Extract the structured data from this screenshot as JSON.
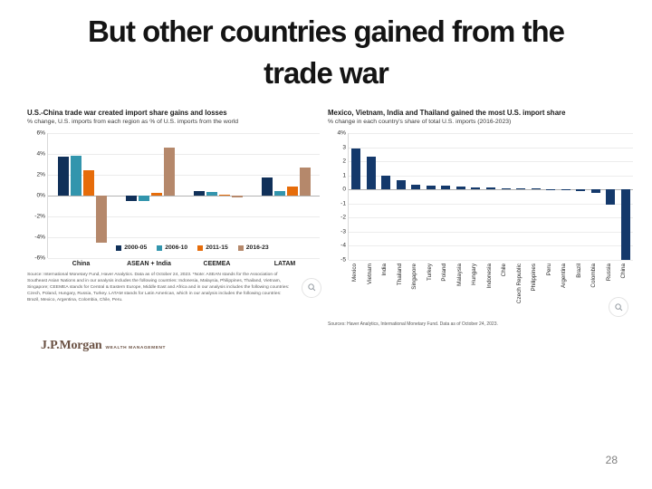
{
  "slide": {
    "title_lines": [
      "But other countries gained from the",
      "trade war"
    ],
    "page_number": "28"
  },
  "logo": {
    "name": "J.P.Morgan",
    "suffix": "WEALTH MANAGEMENT"
  },
  "colors": {
    "navy": "#103059",
    "teal": "#3295ad",
    "orange": "#e66c0a",
    "tan": "#b5886b",
    "right_bar_navy": "#14396b"
  },
  "chart_data": [
    {
      "type": "bar",
      "title": "U.S.-China trade war created import share gains and losses",
      "subtitle": "% change, U.S. imports from each region as % of U.S. imports from the world",
      "categories": [
        "China",
        "ASEAN + India",
        "CEEMEA",
        "LATAM"
      ],
      "series": [
        {
          "name": "2000-05",
          "color": "#103059",
          "values": [
            3.7,
            -0.5,
            0.4,
            1.7
          ]
        },
        {
          "name": "2006-10",
          "color": "#3295ad",
          "values": [
            3.8,
            -0.5,
            0.35,
            0.4
          ]
        },
        {
          "name": "2011-15",
          "color": "#e66c0a",
          "values": [
            2.4,
            0.3,
            0.1,
            0.9
          ]
        },
        {
          "name": "2016-23",
          "color": "#b5886b",
          "values": [
            -4.5,
            4.6,
            -0.2,
            2.7
          ]
        }
      ],
      "ylim": [
        -6,
        6
      ],
      "yticks": [
        "6%",
        "4%",
        "2%",
        "0%",
        "-2%",
        "-4%",
        "-6%"
      ],
      "legend_position": "bottom-inside",
      "grid": true,
      "source": "Source: International Monetary Fund, Haver Analytics. Data as of October 24, 2023. *Note: ASEAN stands for the Association of Southeast Asian Nations and in our analysis includes the following countries: Indonesia, Malaysia, Philippines, Thailand, Vietnam, Singapore; CEEMEA stands for Central & Eastern Europe, Middle East and Africa and in our analysis includes the following countries: Czech, Poland, Hungary, Russia, Turkey. LATAM stands for Latin American, which in our analysis includes the following countries: Brazil, Mexico, Argentina, Colombia, Chile, Peru."
    },
    {
      "type": "bar",
      "title": "Mexico, Vietnam, India and Thailand gained the most U.S. import share",
      "subtitle": "% change in each country's share of total U.S. imports (2016-2023)",
      "categories": [
        "Mexico",
        "Vietnam",
        "India",
        "Thailand",
        "Singapore",
        "Turkey",
        "Poland",
        "Malaysia",
        "Hungary",
        "Indonesia",
        "Chile",
        "Czech Republic",
        "Philippines",
        "Peru",
        "Argentina",
        "Brazil",
        "Colombia",
        "Russia",
        "China"
      ],
      "values": [
        2.9,
        2.3,
        0.95,
        0.65,
        0.35,
        0.3,
        0.25,
        0.2,
        0.15,
        0.15,
        0.1,
        0.1,
        0.05,
        0.03,
        0.02,
        -0.1,
        -0.25,
        -1.05,
        -5.0
      ],
      "bar_color": "#14396b",
      "ylim": [
        -5,
        4
      ],
      "yticks": [
        "4%",
        "3",
        "2",
        "1",
        "0",
        "-1",
        "-2",
        "-3",
        "-4",
        "-5"
      ],
      "grid": true,
      "source": "Sources: Haver Analytics, International Monetary Fund. Data as of October 24, 2023."
    }
  ]
}
